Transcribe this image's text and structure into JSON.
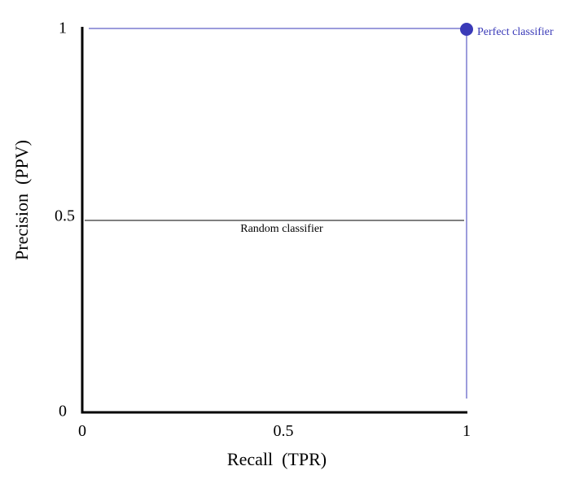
{
  "chart_data": {
    "type": "line",
    "xlabel": "Recall  (TPR)",
    "ylabel": "Precision  (PPV)",
    "xlim": [
      0,
      1
    ],
    "ylim": [
      0,
      1
    ],
    "xticks": [
      "0",
      "0.5",
      "1"
    ],
    "yticks": [
      "0",
      "0.5",
      "1"
    ],
    "grid": false,
    "series": [
      {
        "name": "Random classifier",
        "x": [
          0,
          1
        ],
        "y": [
          0.5,
          0.5
        ],
        "color": "#000000"
      },
      {
        "name": "Perfect classifier",
        "x": [
          0,
          1,
          1
        ],
        "y": [
          1,
          1,
          0
        ],
        "color": "#3a3ab8"
      }
    ],
    "points": [
      {
        "label": "Perfect classifier",
        "x": 1,
        "y": 1,
        "color": "#3a3ab8"
      }
    ]
  }
}
